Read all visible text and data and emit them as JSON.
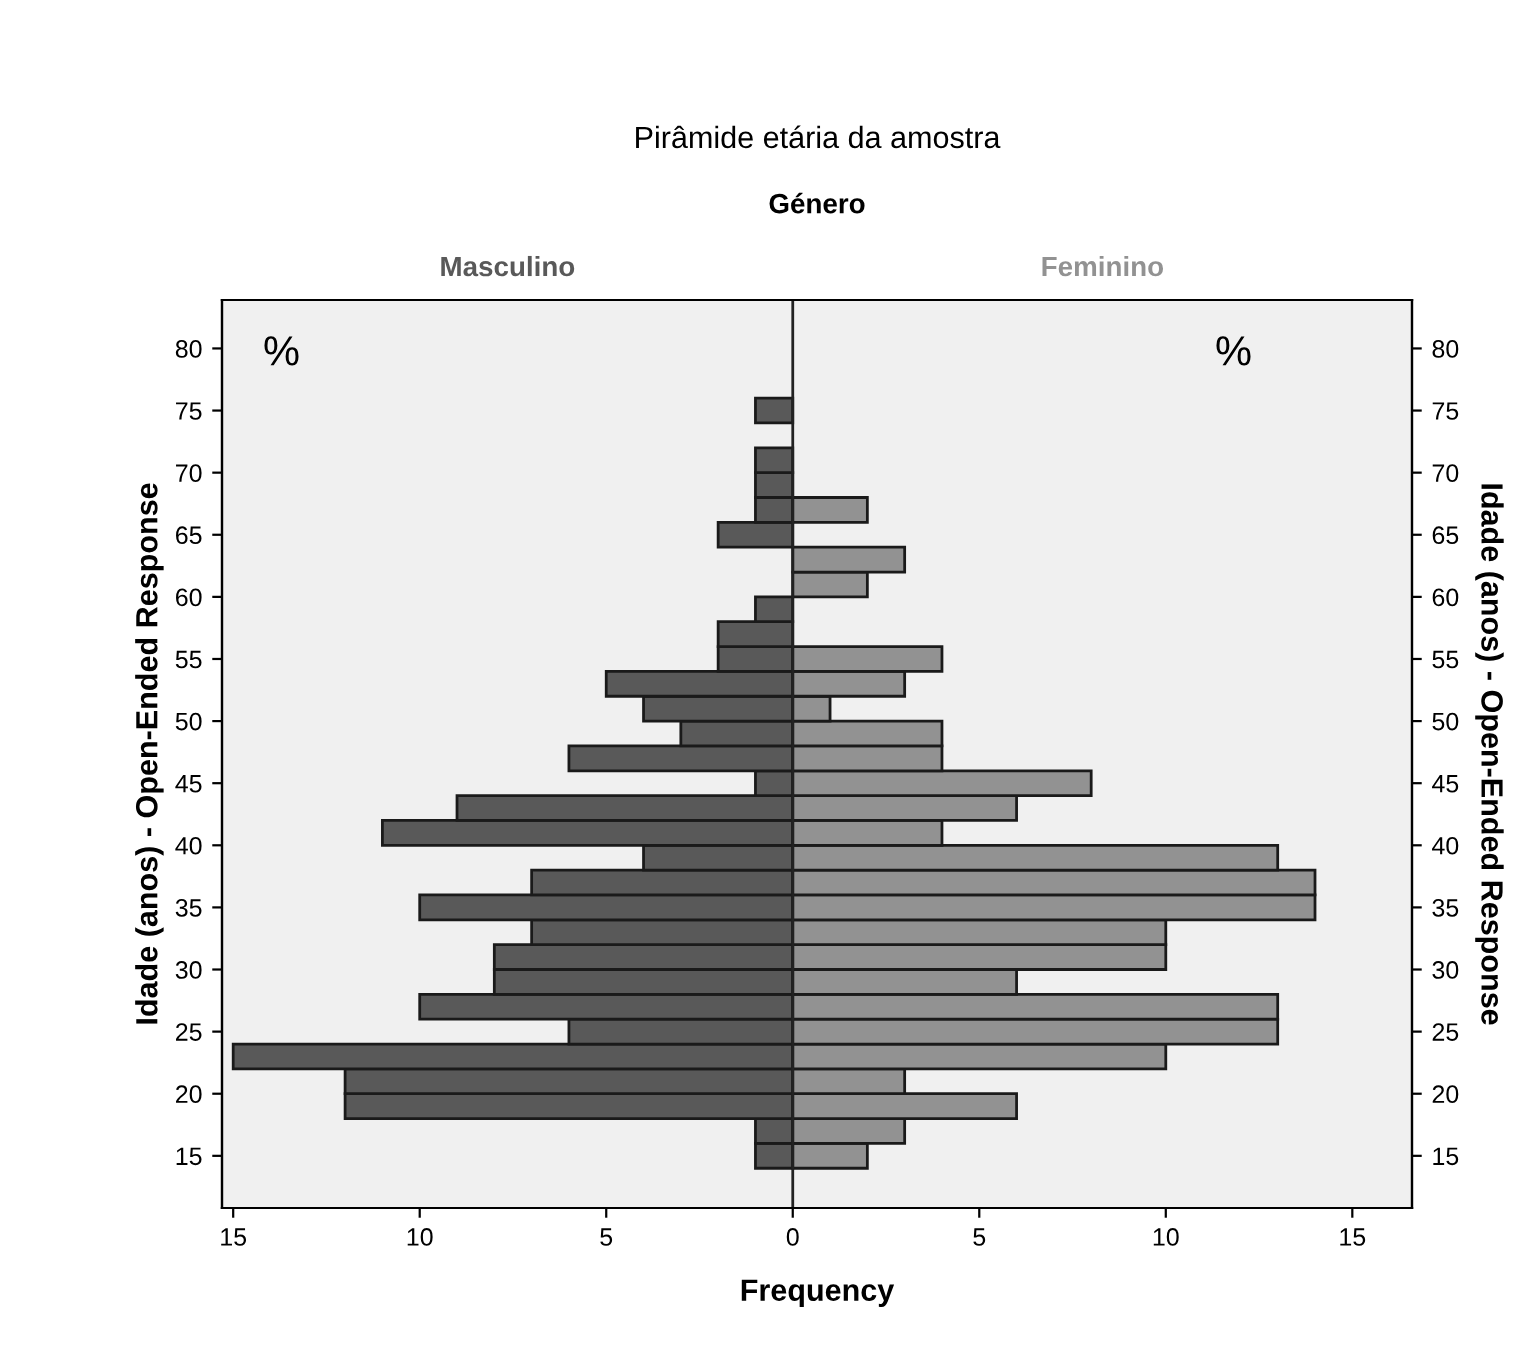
{
  "chart_data": {
    "type": "bar",
    "orientation": "horizontal",
    "title": "Pirâmide etária da amostra",
    "subtitle": "Género",
    "xlabel": "Frequency",
    "ylabel": "Idade (anos) - Open-Ended Response",
    "y2label": "Idade (anos) - Open-Ended Response",
    "annotations": [
      "%",
      "%"
    ],
    "x": [
      15,
      17,
      19,
      21,
      23,
      25,
      27,
      29,
      31,
      33,
      35,
      37,
      39,
      41,
      43,
      45,
      47,
      49,
      51,
      53,
      55,
      57,
      59,
      61,
      63,
      65,
      67,
      69,
      71,
      73,
      75
    ],
    "series": [
      {
        "name": "Masculino",
        "color": "#595959",
        "values": [
          -1,
          -1,
          -12,
          -12,
          -15,
          -6,
          -10,
          -8,
          -8,
          -7,
          -10,
          -7,
          -4,
          -11,
          -9,
          -1,
          -6,
          -3,
          -4,
          -5,
          -2,
          -2,
          -1,
          0,
          0,
          -2,
          -1,
          -1,
          -1,
          0,
          -1
        ]
      },
      {
        "name": "Feminino",
        "color": "#929292",
        "values": [
          2,
          3,
          6,
          3,
          10,
          13,
          13,
          6,
          10,
          10,
          14,
          14,
          13,
          4,
          6,
          8,
          4,
          4,
          1,
          3,
          4,
          0,
          0,
          2,
          3,
          0,
          2,
          0,
          0,
          0,
          0
        ]
      }
    ],
    "xlim": [
      -15.3,
      16.6
    ],
    "xticks": [
      {
        "value": -15,
        "label": "15"
      },
      {
        "value": -10,
        "label": "10"
      },
      {
        "value": -5,
        "label": "5"
      },
      0,
      5,
      10,
      15
    ],
    "ylim": [
      10.8,
      83.9
    ],
    "yticks": [
      15,
      20,
      25,
      30,
      35,
      40,
      45,
      50,
      55,
      60,
      65,
      70,
      75,
      80
    ],
    "y2lim": [
      10.8,
      83.9
    ],
    "y2ticks": [
      15,
      20,
      25,
      30,
      35,
      40,
      45,
      50,
      55,
      60,
      65,
      70,
      75,
      80
    ],
    "grid": false,
    "legend": false,
    "stacked": true,
    "ref_lines": [
      {
        "axis": "x",
        "value": 0,
        "color": "#222222"
      }
    ]
  }
}
